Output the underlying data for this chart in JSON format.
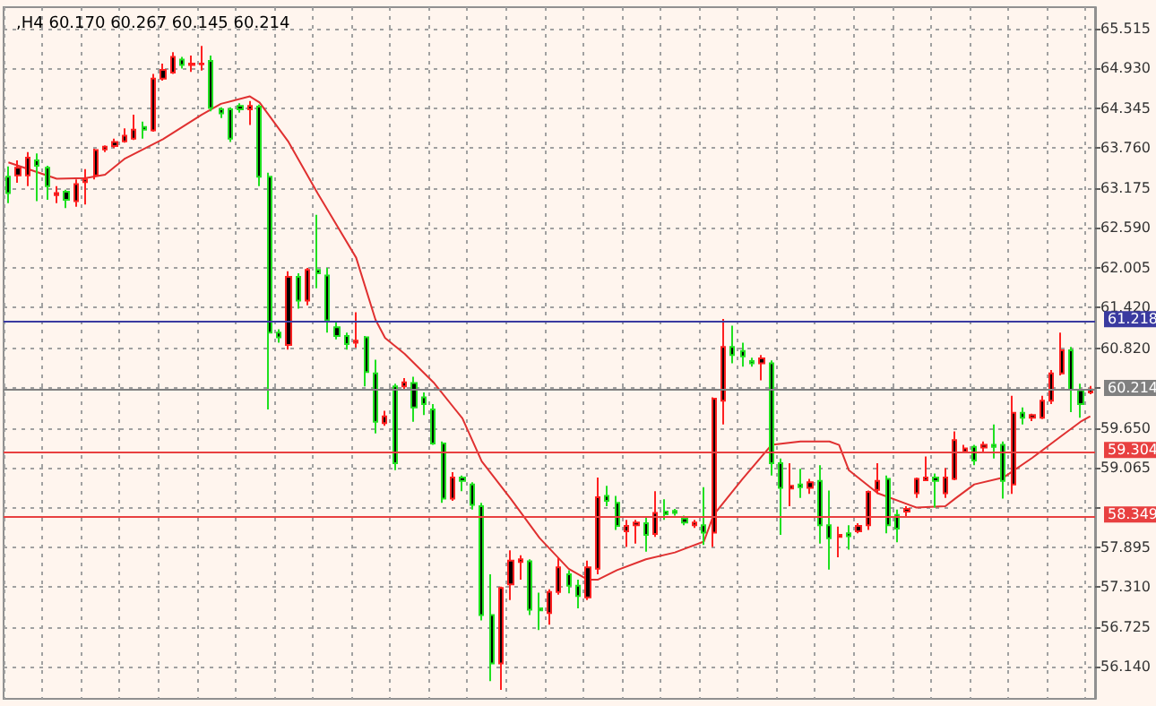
{
  "chart_data": {
    "type": "candlestick",
    "title": ",H4 60.170 60.267 60.145 60.214",
    "categories": [
      null,
      null,
      null,
      null,
      null,
      null,
      null,
      null,
      null,
      null,
      null,
      null,
      null,
      null,
      null,
      null,
      null,
      null,
      null,
      null,
      null,
      null,
      null,
      null,
      null,
      null,
      null,
      null,
      null,
      null,
      null,
      null,
      null,
      null,
      null,
      null,
      null,
      null,
      null,
      null,
      null,
      null,
      null,
      null,
      null,
      null,
      null,
      null,
      null,
      null,
      null,
      null,
      null,
      null,
      null,
      null,
      null,
      null,
      null,
      null,
      null,
      null,
      null,
      null,
      null,
      null,
      null,
      null,
      null,
      null,
      null,
      null,
      null,
      null,
      null,
      null,
      null,
      null,
      null,
      null,
      null,
      null,
      null,
      null,
      null,
      null,
      null,
      null,
      null,
      null,
      null,
      null,
      null,
      null,
      null,
      null,
      null,
      null,
      null,
      null,
      null,
      null,
      null,
      null,
      null,
      null,
      null,
      null,
      null,
      null,
      null,
      null,
      null
    ],
    "series": [
      {
        "color": "#000000",
        "ohlc": [
          [
            63.34,
            63.49,
            62.95,
            63.1
          ],
          [
            63.36,
            63.58,
            63.25,
            63.47
          ],
          [
            63.36,
            63.7,
            63.2,
            63.62
          ],
          [
            63.58,
            63.68,
            62.98,
            63.5
          ],
          [
            63.47,
            63.5,
            63.0,
            63.2
          ],
          [
            63.07,
            63.2,
            62.95,
            63.1
          ],
          [
            63.12,
            63.15,
            62.88,
            63.0
          ],
          [
            62.98,
            63.3,
            62.9,
            63.23
          ],
          [
            63.26,
            63.45,
            62.93,
            63.3
          ],
          [
            63.36,
            63.75,
            63.3,
            63.73
          ],
          [
            63.74,
            63.8,
            63.7,
            63.78
          ],
          [
            63.79,
            63.9,
            63.76,
            63.85
          ],
          [
            63.86,
            64.05,
            63.84,
            63.94
          ],
          [
            63.9,
            64.25,
            63.88,
            64.03
          ],
          [
            64.07,
            64.15,
            63.9,
            64.03
          ],
          [
            64.02,
            64.85,
            64.0,
            64.78
          ],
          [
            64.78,
            65.0,
            64.75,
            64.91
          ],
          [
            64.87,
            65.17,
            64.85,
            65.1
          ],
          [
            65.06,
            65.1,
            64.93,
            64.98
          ],
          [
            64.98,
            65.12,
            64.88,
            65.0
          ],
          [
            64.99,
            65.26,
            64.9,
            65.0
          ],
          [
            65.04,
            65.12,
            64.3,
            64.35
          ],
          [
            64.33,
            64.36,
            64.2,
            64.27
          ],
          [
            64.33,
            64.36,
            63.85,
            63.9
          ],
          [
            64.38,
            64.42,
            64.28,
            64.33
          ],
          [
            64.33,
            64.45,
            64.1,
            64.38
          ],
          [
            64.37,
            64.4,
            63.2,
            63.34
          ],
          [
            63.34,
            63.4,
            59.92,
            61.05
          ],
          [
            61.05,
            61.1,
            60.9,
            60.98
          ],
          [
            60.87,
            61.95,
            60.8,
            61.87
          ],
          [
            61.87,
            61.92,
            61.4,
            61.52
          ],
          [
            61.52,
            62.0,
            61.45,
            61.97
          ],
          [
            61.97,
            62.78,
            61.7,
            61.92
          ],
          [
            61.89,
            62.0,
            61.05,
            61.23
          ],
          [
            61.13,
            61.2,
            60.95,
            61.0
          ],
          [
            61.0,
            61.05,
            60.8,
            60.88
          ],
          [
            60.9,
            61.35,
            60.83,
            60.93
          ],
          [
            60.98,
            61.0,
            60.26,
            60.47
          ],
          [
            60.45,
            60.65,
            59.57,
            59.74
          ],
          [
            59.72,
            59.9,
            59.68,
            59.82
          ],
          [
            60.26,
            60.3,
            59.03,
            59.13
          ],
          [
            60.26,
            60.38,
            60.2,
            60.32
          ],
          [
            60.31,
            60.4,
            59.74,
            59.95
          ],
          [
            60.1,
            60.17,
            59.84,
            60.0
          ],
          [
            59.92,
            60.0,
            59.4,
            59.42
          ],
          [
            59.42,
            59.45,
            58.55,
            58.61
          ],
          [
            58.61,
            59.0,
            58.58,
            58.92
          ],
          [
            58.92,
            58.95,
            58.72,
            58.87
          ],
          [
            58.82,
            58.85,
            58.45,
            58.52
          ],
          [
            58.5,
            58.55,
            56.82,
            56.9
          ],
          [
            56.9,
            57.5,
            55.93,
            56.19
          ],
          [
            56.19,
            57.32,
            55.8,
            57.3
          ],
          [
            57.35,
            57.85,
            57.12,
            57.7
          ],
          [
            57.68,
            57.78,
            57.42,
            57.72
          ],
          [
            57.69,
            57.72,
            56.9,
            56.98
          ],
          [
            57.0,
            57.23,
            56.68,
            56.97
          ],
          [
            56.93,
            57.28,
            56.76,
            57.24
          ],
          [
            57.24,
            57.74,
            57.2,
            57.6
          ],
          [
            57.5,
            57.56,
            57.22,
            57.33
          ],
          [
            57.33,
            57.42,
            57.0,
            57.18
          ],
          [
            57.16,
            57.7,
            57.12,
            57.6
          ],
          [
            57.58,
            58.92,
            57.5,
            58.63
          ],
          [
            58.65,
            58.8,
            58.5,
            58.58
          ],
          [
            58.55,
            58.65,
            58.15,
            58.21
          ],
          [
            58.13,
            58.3,
            57.9,
            58.21
          ],
          [
            58.22,
            58.3,
            57.95,
            58.26
          ],
          [
            58.25,
            58.33,
            57.83,
            58.08
          ],
          [
            58.09,
            58.72,
            58.05,
            58.4
          ],
          [
            58.42,
            58.6,
            58.3,
            58.38
          ],
          [
            58.43,
            58.46,
            58.36,
            58.4
          ],
          [
            58.32,
            58.36,
            58.22,
            58.26
          ],
          [
            58.22,
            58.3,
            58.18,
            58.26
          ],
          [
            58.22,
            58.78,
            57.93,
            58.11
          ],
          [
            58.11,
            60.1,
            57.9,
            60.08
          ],
          [
            60.05,
            61.25,
            59.7,
            60.84
          ],
          [
            60.84,
            61.15,
            60.6,
            60.72
          ],
          [
            60.78,
            60.9,
            60.55,
            60.7
          ],
          [
            60.63,
            60.68,
            60.55,
            60.6
          ],
          [
            60.6,
            60.72,
            60.35,
            60.67
          ],
          [
            60.6,
            60.64,
            58.95,
            59.13
          ],
          [
            59.13,
            59.2,
            58.08,
            58.77
          ],
          [
            58.76,
            59.13,
            58.5,
            58.8
          ],
          [
            58.82,
            59.05,
            58.62,
            58.78
          ],
          [
            58.77,
            58.9,
            58.68,
            58.85
          ],
          [
            58.87,
            59.1,
            57.95,
            58.22
          ],
          [
            58.22,
            58.73,
            57.57,
            58.03
          ],
          [
            58.05,
            58.2,
            57.75,
            58.08
          ],
          [
            58.1,
            58.22,
            57.86,
            58.06
          ],
          [
            58.13,
            58.25,
            58.1,
            58.21
          ],
          [
            58.22,
            58.73,
            58.15,
            58.71
          ],
          [
            58.74,
            59.13,
            58.68,
            58.87
          ],
          [
            58.9,
            58.95,
            58.1,
            58.22
          ],
          [
            58.37,
            58.45,
            57.97,
            58.17
          ],
          [
            58.42,
            58.5,
            58.35,
            58.46
          ],
          [
            58.69,
            58.92,
            58.62,
            58.9
          ],
          [
            58.88,
            59.23,
            58.87,
            58.92
          ],
          [
            58.92,
            58.98,
            58.48,
            58.87
          ],
          [
            58.69,
            59.06,
            58.62,
            58.92
          ],
          [
            58.9,
            59.6,
            58.88,
            59.47
          ],
          [
            59.3,
            59.4,
            59.28,
            59.35
          ],
          [
            59.37,
            59.4,
            59.1,
            59.17
          ],
          [
            59.36,
            59.45,
            59.3,
            59.4
          ],
          [
            59.4,
            59.7,
            59.2,
            59.37
          ],
          [
            59.4,
            59.45,
            58.61,
            58.87
          ],
          [
            58.82,
            60.12,
            58.68,
            59.87
          ],
          [
            59.87,
            59.95,
            59.7,
            59.8
          ],
          [
            59.8,
            59.86,
            59.75,
            59.84
          ],
          [
            59.8,
            60.12,
            59.78,
            60.05
          ],
          [
            60.05,
            60.5,
            60.0,
            60.45
          ],
          [
            60.45,
            61.05,
            60.42,
            60.79
          ],
          [
            60.79,
            60.84,
            59.88,
            60.21
          ],
          [
            60.2,
            60.3,
            59.8,
            60.0
          ],
          [
            60.17,
            60.267,
            60.145,
            60.214
          ]
        ]
      },
      {
        "type": "line",
        "color": "#e03030",
        "values": [
          63.55,
          null,
          null,
          null,
          null,
          63.31,
          null,
          null,
          63.32,
          null,
          63.37,
          null,
          63.6,
          null,
          null,
          null,
          63.89,
          null,
          null,
          null,
          64.25,
          null,
          64.41,
          null,
          null,
          64.52,
          64.43,
          null,
          null,
          63.85,
          null,
          null,
          63.1,
          null,
          null,
          null,
          62.15,
          null,
          61.24,
          60.97,
          null,
          60.74,
          null,
          null,
          60.32,
          null,
          null,
          59.79,
          null,
          59.16,
          null,
          null,
          58.61,
          null,
          null,
          58.03,
          null,
          null,
          57.58,
          null,
          57.42,
          57.42,
          null,
          57.56,
          null,
          null,
          57.72,
          null,
          null,
          57.82,
          null,
          null,
          57.98,
          58.37,
          null,
          null,
          58.9,
          null,
          null,
          59.4,
          null,
          null,
          59.45,
          null,
          null,
          59.45,
          59.4,
          59.03,
          null,
          null,
          58.69,
          null,
          null,
          null,
          58.48,
          null,
          null,
          58.5,
          58.61,
          null,
          58.82,
          null,
          null,
          58.92,
          null,
          null,
          59.21,
          null,
          null,
          59.53,
          null,
          59.74,
          59.82
        ]
      }
    ],
    "ylim": [
      55.67,
      65.83
    ],
    "yticks": [
      {
        "value": 56.14,
        "label": "56.140"
      },
      {
        "value": 56.725,
        "label": "56.725"
      },
      {
        "value": 57.31,
        "label": "57.310"
      },
      {
        "value": 57.895,
        "label": "57.895"
      },
      {
        "value": 58.48,
        "label": null
      },
      {
        "value": 59.065,
        "label": "59.065"
      },
      {
        "value": 59.65,
        "label": "59.650"
      },
      {
        "value": 60.235,
        "label": null
      },
      {
        "value": 60.82,
        "label": "60.820"
      },
      {
        "value": 61.42,
        "label": "61.420"
      },
      {
        "value": 62.005,
        "label": "62.005"
      },
      {
        "value": 62.59,
        "label": "62.590"
      },
      {
        "value": 63.175,
        "label": "63.175"
      },
      {
        "value": 63.76,
        "label": "63.760"
      },
      {
        "value": 64.345,
        "label": "64.345"
      },
      {
        "value": 64.93,
        "label": "64.930"
      },
      {
        "value": 65.515,
        "label": "65.515"
      }
    ],
    "ref_lines": [
      {
        "axis": "y",
        "value": 61.218,
        "label": "61.218",
        "color": "#3a3aa0"
      },
      {
        "axis": "y",
        "value": 60.214,
        "label": "60.214",
        "color": "#808080"
      },
      {
        "axis": "y",
        "value": 59.304,
        "label": "59.304",
        "color": "#e84040"
      },
      {
        "axis": "y",
        "value": 58.349,
        "label": "58.349",
        "color": "#e84040"
      }
    ],
    "grid": true,
    "tick_labels": "y"
  }
}
